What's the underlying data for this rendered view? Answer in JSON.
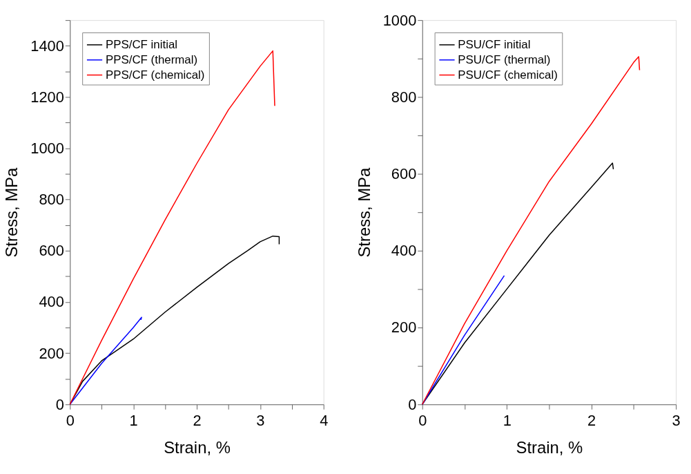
{
  "chart_data": [
    {
      "type": "line",
      "xlabel": "Strain, %",
      "ylabel": "Stress, MPa",
      "xlim": [
        0,
        4
      ],
      "ylim": [
        0,
        1500
      ],
      "xticks": [
        0,
        {
          "value": 0.5,
          "label": null
        },
        1,
        {
          "value": 1.5,
          "label": null
        },
        2,
        {
          "value": 2.5,
          "label": null
        },
        3,
        {
          "value": 3.5,
          "label": null
        },
        4
      ],
      "yticks": [
        0,
        {
          "value": 100,
          "label": null
        },
        200,
        {
          "value": 300,
          "label": null
        },
        400,
        {
          "value": 500,
          "label": null
        },
        600,
        {
          "value": 700,
          "label": null
        },
        800,
        {
          "value": 900,
          "label": null
        },
        1000,
        {
          "value": 1100,
          "label": null
        },
        1200,
        {
          "value": 1300,
          "label": null
        },
        1400,
        {
          "value": 1500,
          "label": null
        }
      ],
      "grid": false,
      "legend": "top left",
      "line_style": "solid",
      "marker": "none",
      "series": [
        {
          "name": "PPS/CF initial",
          "color": "#000000",
          "x": [
            0,
            0.2,
            0.5,
            1,
            1.5,
            2,
            2.5,
            2.8,
            3.0,
            3.2,
            3.3,
            3.3
          ],
          "values": [
            0,
            90,
            170,
            255,
            360,
            457,
            550,
            600,
            635,
            657,
            655,
            625
          ]
        },
        {
          "name": "PPS/CF (thermal)",
          "color": "#0000ff",
          "x": [
            0,
            0.5,
            1,
            1.13,
            1.12
          ],
          "values": [
            0,
            160,
            300,
            340,
            330
          ]
        },
        {
          "name": "PPS/CF (chemical)",
          "color": "#ff0000",
          "x": [
            0,
            0.5,
            1,
            1.5,
            2,
            2.5,
            3,
            3.2,
            3.23
          ],
          "values": [
            0,
            250,
            490,
            720,
            940,
            1150,
            1320,
            1380,
            1165
          ]
        }
      ]
    },
    {
      "type": "line",
      "xlabel": "Strain, %",
      "ylabel": "Stress, MPa",
      "xlim": [
        0,
        3
      ],
      "ylim": [
        0,
        1000
      ],
      "xticks": [
        0,
        {
          "value": 0.5,
          "label": null
        },
        1,
        {
          "value": 1.5,
          "label": null
        },
        2,
        {
          "value": 2.5,
          "label": null
        },
        3
      ],
      "yticks": [
        0,
        {
          "value": 100,
          "label": null
        },
        200,
        {
          "value": 300,
          "label": null
        },
        400,
        {
          "value": 500,
          "label": null
        },
        600,
        {
          "value": 700,
          "label": null
        },
        800,
        {
          "value": 900,
          "label": null
        },
        1000
      ],
      "grid": false,
      "legend": "top left",
      "line_style": "solid",
      "marker": "none",
      "series": [
        {
          "name": "PSU/CF initial",
          "color": "#000000",
          "x": [
            0,
            0.5,
            1,
            1.5,
            2,
            2.25,
            2.26
          ],
          "values": [
            0,
            160,
            300,
            440,
            565,
            628,
            612
          ]
        },
        {
          "name": "PSU/CF (thermal)",
          "color": "#0000ff",
          "x": [
            0,
            0.5,
            0.97
          ],
          "values": [
            0,
            180,
            335
          ]
        },
        {
          "name": "PSU/CF (chemical)",
          "color": "#ff0000",
          "x": [
            0,
            0.5,
            1,
            1.5,
            2,
            2.5,
            2.56,
            2.57
          ],
          "values": [
            0,
            210,
            400,
            580,
            730,
            890,
            905,
            870
          ]
        }
      ]
    }
  ]
}
